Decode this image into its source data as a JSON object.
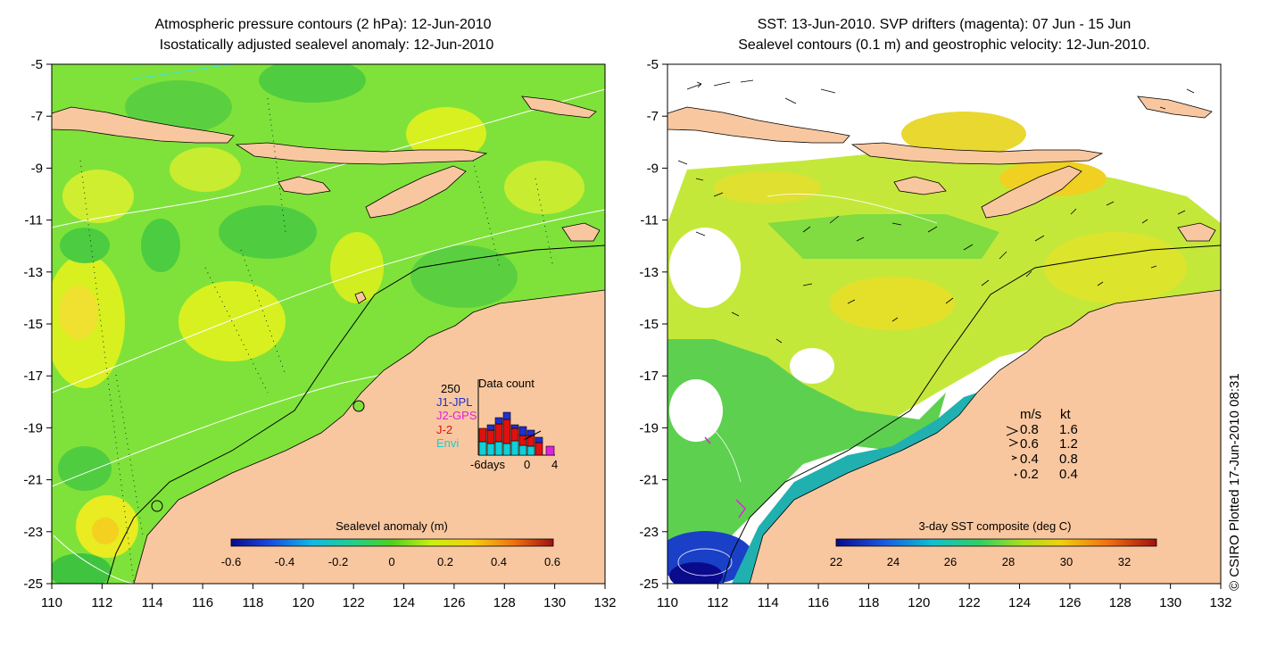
{
  "left_panel": {
    "title_line1": "Atmospheric pressure contours (2 hPa): 12-Jun-2010",
    "title_line2": "Isostatically adjusted sealevel anomaly: 12-Jun-2010",
    "colorbar_label": "Sealevel anomaly (m)",
    "colorbar_ticks": [
      "-0.6",
      "-0.4",
      "-0.2",
      "0",
      "0.2",
      "0.4",
      "0.6"
    ],
    "datacount": {
      "title": "Data count",
      "max_label": "250",
      "legend": [
        {
          "label": "J1-JPL",
          "color": "#1f2fd0"
        },
        {
          "label": "J2-GPS",
          "color": "#e020e0"
        },
        {
          "label": "J-2",
          "color": "#e01010"
        },
        {
          "label": "Envi",
          "color": "#10d0d8"
        }
      ],
      "xlabels": [
        "-6days",
        "0",
        "4"
      ]
    }
  },
  "right_panel": {
    "title_line1": "SST: 13-Jun-2010. SVP drifters (magenta): 07 Jun - 15 Jun",
    "title_line2": "Sealevel contours (0.1 m) and geostrophic velocity: 12-Jun-2010.",
    "colorbar_label": "3-day SST composite (deg C)",
    "colorbar_ticks": [
      "22",
      "24",
      "26",
      "28",
      "30",
      "32"
    ],
    "speed_legend": {
      "header_ms": "m/s",
      "header_kt": "kt",
      "rows": [
        {
          "ms": "0.8",
          "kt": "1.6"
        },
        {
          "ms": "0.6",
          "kt": "1.2"
        },
        {
          "ms": "0.4",
          "kt": "0.8"
        },
        {
          "ms": "0.2",
          "kt": "0.4"
        }
      ]
    }
  },
  "axes": {
    "x_ticks": [
      "110",
      "112",
      "114",
      "116",
      "118",
      "120",
      "122",
      "124",
      "126",
      "128",
      "130",
      "132"
    ],
    "y_ticks": [
      "-5",
      "-7",
      "-9",
      "-11",
      "-13",
      "-15",
      "-17",
      "-19",
      "-21",
      "-23",
      "-25"
    ]
  },
  "credit": "© CSIRO Plotted 17-Jun-2010 08:31",
  "colors": {
    "land": "#f9c79f",
    "ocean_left": "#7fe23a",
    "ocean_right": "#a8e02a"
  }
}
